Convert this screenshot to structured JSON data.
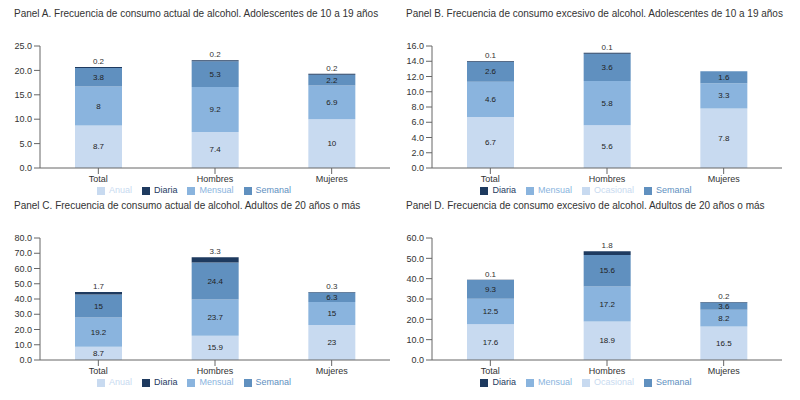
{
  "chart_data": [
    {
      "type": "bar",
      "stacked": true,
      "data_labels": true,
      "grid": false,
      "legend": "bottom",
      "title": "Panel A. Frecuencia de consumo actual de alcohol. Adolescentes de 10 a 19 años",
      "categories": [
        "Total",
        "Hombres",
        "Mujeres"
      ],
      "series": [
        {
          "name": "Anual",
          "color": "#c8daf0",
          "values": [
            8.7,
            7.4,
            10.0
          ]
        },
        {
          "name": "Mensual",
          "color": "#8ab4de",
          "values": [
            8.0,
            9.2,
            6.9
          ]
        },
        {
          "name": "Semanal",
          "color": "#6090bf",
          "values": [
            3.8,
            5.3,
            2.2
          ]
        },
        {
          "name": "Diaria",
          "color": "#1e3a5f",
          "values": [
            0.2,
            0.2,
            0.2
          ]
        }
      ],
      "ylim": [
        0,
        25
      ],
      "yticks": [
        {
          "value": 0,
          "label": "0.0"
        },
        {
          "value": 5,
          "label": "5.0"
        },
        {
          "value": 10,
          "label": "10.0"
        },
        {
          "value": 15,
          "label": "15.0"
        },
        {
          "value": 20,
          "label": "20.0"
        },
        {
          "value": 25,
          "label": "25.0"
        }
      ]
    },
    {
      "type": "bar",
      "stacked": true,
      "data_labels": true,
      "grid": false,
      "legend": "bottom",
      "title": "Panel B. Frecuencia de consumo excesivo de alcohol. Adolescentes de 10 a 19 años",
      "categories": [
        "Total",
        "Hombres",
        "Mujeres"
      ],
      "series": [
        {
          "name": "Ocasional",
          "color": "#c8daf0",
          "values": [
            6.7,
            5.6,
            7.8
          ]
        },
        {
          "name": "Mensual",
          "color": "#8ab4de",
          "values": [
            4.6,
            5.8,
            3.3
          ]
        },
        {
          "name": "Semanal",
          "color": "#6090bf",
          "values": [
            2.6,
            3.6,
            1.6
          ]
        },
        {
          "name": "Diaria",
          "color": "#1e3a5f",
          "values": [
            0.1,
            0.1,
            0.0
          ],
          "value_labels": [
            "0.1",
            "0.1",
            null
          ]
        }
      ],
      "ylim": [
        0,
        16
      ],
      "yticks": [
        {
          "value": 0,
          "label": "0.0"
        },
        {
          "value": 2,
          "label": "2.0"
        },
        {
          "value": 4,
          "label": "4.0"
        },
        {
          "value": 6,
          "label": "6.0"
        },
        {
          "value": 8,
          "label": "8.0"
        },
        {
          "value": 10,
          "label": "10.0"
        },
        {
          "value": 12,
          "label": "12.0"
        },
        {
          "value": 14,
          "label": "14.0"
        },
        {
          "value": 16,
          "label": "16.0"
        }
      ]
    },
    {
      "type": "bar",
      "stacked": true,
      "data_labels": true,
      "grid": false,
      "legend": "bottom",
      "title": "Panel C. Frecuencia de consumo actual de alcohol. Adultos de 20 años o más",
      "categories": [
        "Total",
        "Hombres",
        "Mujeres"
      ],
      "series": [
        {
          "name": "Anual",
          "color": "#c8daf0",
          "values": [
            8.7,
            15.9,
            23.0
          ]
        },
        {
          "name": "Mensual",
          "color": "#8ab4de",
          "values": [
            19.2,
            23.7,
            15.0
          ]
        },
        {
          "name": "Semanal",
          "color": "#6090bf",
          "values": [
            15.0,
            24.4,
            6.3
          ]
        },
        {
          "name": "Diaria",
          "color": "#1e3a5f",
          "values": [
            1.7,
            3.3,
            0.3
          ]
        }
      ],
      "ylim": [
        0,
        80
      ],
      "yticks": [
        {
          "value": 0,
          "label": "0.0"
        },
        {
          "value": 10,
          "label": "10.0"
        },
        {
          "value": 20,
          "label": "20.0"
        },
        {
          "value": 30,
          "label": "30.0"
        },
        {
          "value": 40,
          "label": "40.0"
        },
        {
          "value": 50,
          "label": "50.0"
        },
        {
          "value": 60,
          "label": "60.0"
        },
        {
          "value": 70,
          "label": "70.0"
        },
        {
          "value": 80,
          "label": "80.0"
        }
      ]
    },
    {
      "type": "bar",
      "stacked": true,
      "data_labels": true,
      "grid": false,
      "legend": "bottom",
      "title": "Panel D. Frecuencia de consumo excesivo de alcohol. Adultos de 20 años o más",
      "categories": [
        "Total",
        "Hombres",
        "Mujeres"
      ],
      "series": [
        {
          "name": "Ocasional",
          "color": "#c8daf0",
          "values": [
            17.6,
            18.9,
            16.5
          ]
        },
        {
          "name": "Mensual",
          "color": "#8ab4de",
          "values": [
            12.5,
            17.2,
            8.2
          ]
        },
        {
          "name": "Semanal",
          "color": "#6090bf",
          "values": [
            9.3,
            15.6,
            3.6
          ]
        },
        {
          "name": "Diaria",
          "color": "#1e3a5f",
          "values": [
            0.1,
            1.8,
            0.2
          ]
        }
      ],
      "ylim": [
        0,
        60
      ],
      "yticks": [
        {
          "value": 0,
          "label": "0.0"
        },
        {
          "value": 10,
          "label": "10.0"
        },
        {
          "value": 20,
          "label": "20.0"
        },
        {
          "value": 30,
          "label": "30.0"
        },
        {
          "value": 40,
          "label": "40.0"
        },
        {
          "value": 50,
          "label": "50.0"
        },
        {
          "value": 60,
          "label": "60.0"
        }
      ]
    }
  ]
}
